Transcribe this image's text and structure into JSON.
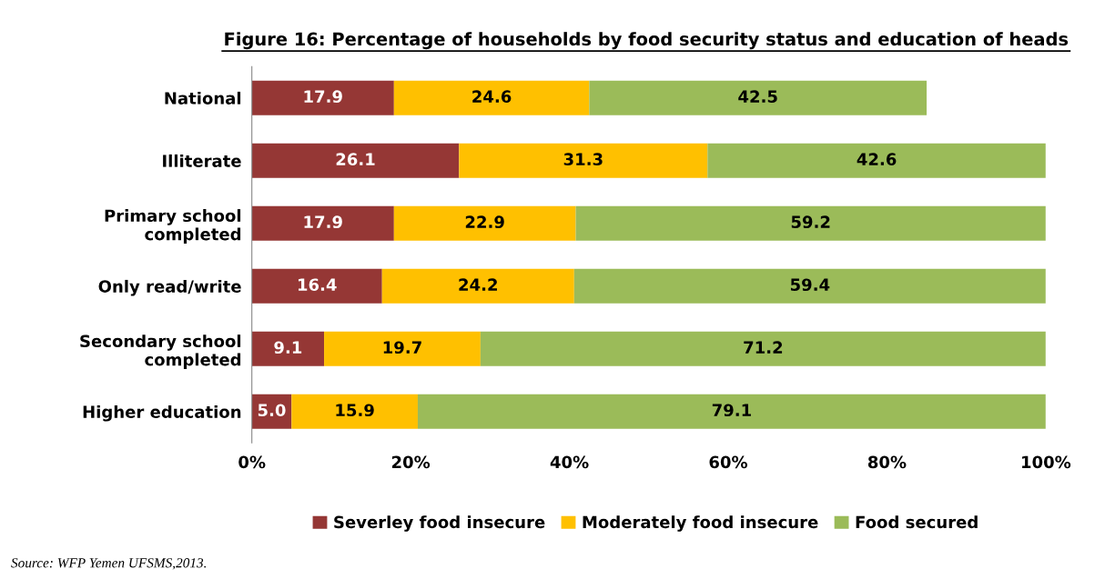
{
  "chart_data": {
    "type": "bar",
    "orientation": "horizontal",
    "stacked": true,
    "title": "Figure 16: Percentage of households by food security status and education of heads",
    "categories": [
      "National",
      "Illiterate",
      "Primary school\ncompleted",
      "Only read/write",
      "Secondary school\ncompleted",
      "Higher education"
    ],
    "series": [
      {
        "name": "Severley food insecure",
        "color": "#953735",
        "values": [
          17.9,
          26.1,
          17.9,
          16.4,
          9.1,
          5.0
        ],
        "value_labels": [
          "17.9",
          "26.1",
          "17.9",
          "16.4",
          "9.1",
          "5.0"
        ]
      },
      {
        "name": "Moderately food insecure",
        "color": "#ffc000",
        "values": [
          24.6,
          31.3,
          22.9,
          24.2,
          19.7,
          15.9
        ],
        "value_labels": [
          "24.6",
          "31.3",
          "22.9",
          "24.2",
          "19.7",
          "15.9"
        ]
      },
      {
        "name": "Food secured",
        "color": "#9bbb59",
        "values": [
          42.5,
          42.6,
          59.2,
          59.4,
          71.2,
          79.1
        ],
        "value_labels": [
          "42.5",
          "42.6",
          "59.2",
          "59.4",
          "71.2",
          "79.1"
        ]
      }
    ],
    "xlim": [
      0,
      100
    ],
    "xticks": [
      {
        "value": 0,
        "label": "0%"
      },
      {
        "value": 20,
        "label": "20%"
      },
      {
        "value": 40,
        "label": "40%"
      },
      {
        "value": 60,
        "label": "60%"
      },
      {
        "value": 80,
        "label": "80%"
      },
      {
        "value": 100,
        "label": "100%"
      }
    ],
    "grid": false,
    "legend": "bottom",
    "annotations": [
      "Source: WFP Yemen UFSMS,2013."
    ]
  }
}
